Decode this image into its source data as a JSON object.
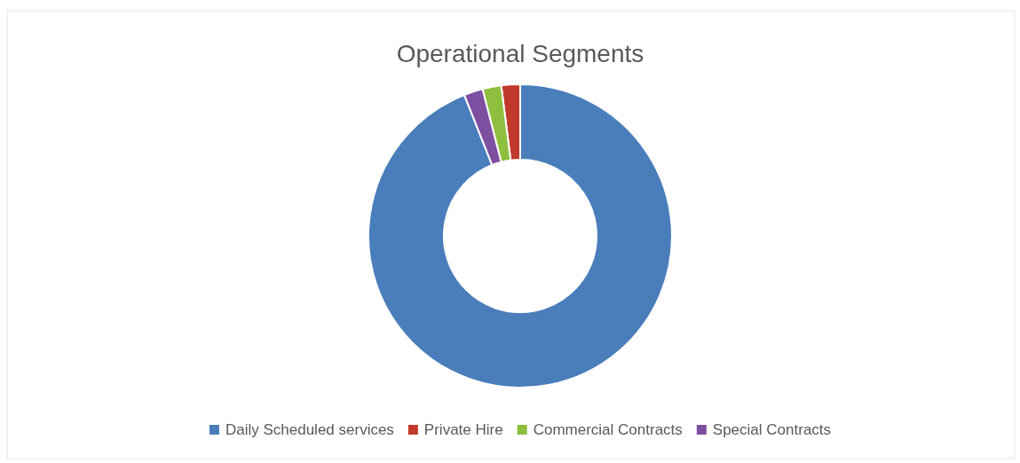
{
  "chart_data": {
    "type": "donut",
    "title": "Operational Segments",
    "categories": [
      "Daily Scheduled services",
      "Private Hire",
      "Commercial Contracts",
      "Special Contracts"
    ],
    "values": [
      94,
      2,
      2,
      2
    ],
    "colors": [
      "#4a7ebb",
      "#c0392b",
      "#8fbf3f",
      "#7d4fa0"
    ],
    "legend": "bottom"
  }
}
